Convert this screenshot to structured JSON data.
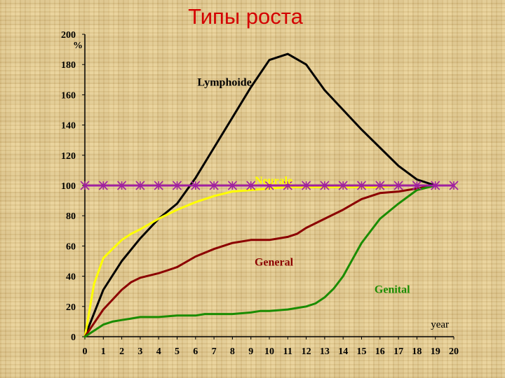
{
  "title": "Типы роста",
  "chart_data": {
    "type": "line",
    "ylabel": "%",
    "xlabel": "year",
    "xlim": [
      0,
      20
    ],
    "ylim": [
      0,
      200
    ],
    "x_ticks": [
      0,
      1,
      2,
      3,
      4,
      5,
      6,
      7,
      8,
      9,
      10,
      11,
      12,
      13,
      14,
      15,
      16,
      17,
      18,
      19,
      20
    ],
    "y_ticks": [
      0,
      20,
      40,
      60,
      80,
      100,
      120,
      140,
      160,
      180,
      200
    ],
    "grid": false,
    "series": [
      {
        "name": "Lymphoide",
        "color": "#000000",
        "x": [
          0,
          1,
          2,
          3,
          4,
          5,
          6,
          7,
          8,
          9,
          10,
          11,
          12,
          13,
          14,
          15,
          16,
          17,
          18,
          19
        ],
        "y": [
          0,
          31,
          50,
          65,
          78,
          88,
          105,
          125,
          145,
          165,
          183,
          187,
          180,
          163,
          150,
          137,
          125,
          113,
          104,
          100
        ]
      },
      {
        "name": "Neurale",
        "color": "#ffff00",
        "x": [
          0,
          0.5,
          1,
          1.5,
          2,
          2.5,
          3,
          4,
          5,
          6,
          7,
          8,
          9,
          10,
          11,
          12,
          13,
          14,
          15,
          16,
          17,
          18,
          19
        ],
        "y": [
          0,
          35,
          52,
          58,
          64,
          68,
          71,
          78,
          84,
          89,
          93,
          96,
          97,
          98,
          99,
          99,
          99,
          99,
          99,
          99,
          100,
          100,
          100
        ]
      },
      {
        "name": "General",
        "color": "#8b0000",
        "x": [
          0,
          1,
          2,
          2.5,
          3,
          4,
          4.5,
          5,
          6,
          7,
          8,
          9,
          10,
          10.5,
          11,
          11.5,
          12,
          13,
          14,
          15,
          16,
          17,
          18,
          19
        ],
        "y": [
          0,
          18,
          31,
          36,
          39,
          42,
          44,
          46,
          53,
          58,
          62,
          64,
          64,
          65,
          66,
          68,
          72,
          78,
          84,
          91,
          95,
          96,
          98,
          100
        ]
      },
      {
        "name": "Genital",
        "color": "#1a8c00",
        "x": [
          0,
          1,
          1.5,
          2,
          2.5,
          3,
          4,
          5,
          6,
          6.5,
          7,
          8,
          9,
          9.5,
          10,
          11,
          11.5,
          12,
          12.5,
          13,
          13.5,
          14,
          15,
          16,
          17,
          18,
          19
        ],
        "y": [
          0,
          8,
          10,
          11,
          12,
          13,
          13,
          14,
          14,
          15,
          15,
          15,
          16,
          17,
          17,
          18,
          19,
          20,
          22,
          26,
          32,
          40,
          62,
          78,
          88,
          97,
          100
        ]
      },
      {
        "name": "",
        "color": "#a020a0",
        "marker": "asterisk",
        "x": [
          0,
          1,
          2,
          3,
          4,
          5,
          6,
          7,
          8,
          9,
          10,
          11,
          12,
          13,
          14,
          15,
          16,
          17,
          18,
          19,
          20
        ],
        "y": [
          100,
          100,
          100,
          100,
          100,
          100,
          100,
          100,
          100,
          100,
          100,
          100,
          100,
          100,
          100,
          100,
          100,
          100,
          100,
          100,
          100
        ]
      }
    ],
    "annotations": [
      {
        "text": "Lymphoide",
        "color": "#000000",
        "x": 6.1,
        "y": 166
      },
      {
        "text": "Neurale",
        "color": "#ffff00",
        "x": 9.2,
        "y": 101
      },
      {
        "text": "General",
        "color": "#8b0000",
        "x": 9.2,
        "y": 47
      },
      {
        "text": "Genital",
        "color": "#1a8c00",
        "x": 15.7,
        "y": 29
      }
    ]
  }
}
